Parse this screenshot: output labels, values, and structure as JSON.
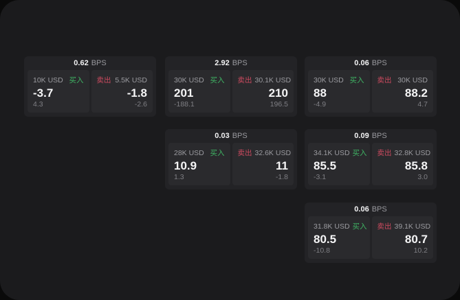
{
  "labels": {
    "bps": "BPS",
    "buy": "买入",
    "sell": "卖出"
  },
  "colors": {
    "page_bg": "#0a0a0a",
    "panel_bg": "#1b1b1d",
    "card_bg": "#232326",
    "subpanel_bg": "#2a2a2d",
    "buy_green": "#3fb464",
    "sell_red": "#cc4a5f",
    "value_white": "#f5f5f6",
    "label_gray": "#9b9ba0",
    "delta_gray": "#7f7f84"
  },
  "cards": [
    {
      "bps": "0.62",
      "buy": {
        "amount": "10K USD",
        "price": "-3.7",
        "delta": "4.3"
      },
      "sell": {
        "amount": "5.5K USD",
        "price": "-1.8",
        "delta": "-2.6"
      }
    },
    {
      "bps": "2.92",
      "buy": {
        "amount": "30K USD",
        "price": "201",
        "delta": "-188.1"
      },
      "sell": {
        "amount": "30.1K USD",
        "price": "210",
        "delta": "196.5"
      }
    },
    {
      "bps": "0.06",
      "buy": {
        "amount": "30K USD",
        "price": "88",
        "delta": "-4.9"
      },
      "sell": {
        "amount": "30K USD",
        "price": "88.2",
        "delta": "4.7"
      }
    },
    {
      "bps": "0.03",
      "buy": {
        "amount": "28K USD",
        "price": "10.9",
        "delta": "1.3"
      },
      "sell": {
        "amount": "32.6K USD",
        "price": "11",
        "delta": "-1.8"
      }
    },
    {
      "bps": "0.09",
      "buy": {
        "amount": "34.1K USD",
        "price": "85.5",
        "delta": "-3.1"
      },
      "sell": {
        "amount": "32.8K USD",
        "price": "85.8",
        "delta": "3.0"
      }
    },
    {
      "bps": "0.06",
      "buy": {
        "amount": "31.8K USD",
        "price": "80.5",
        "delta": "-10.8"
      },
      "sell": {
        "amount": "39.1K USD",
        "price": "80.7",
        "delta": "10.2"
      }
    }
  ]
}
